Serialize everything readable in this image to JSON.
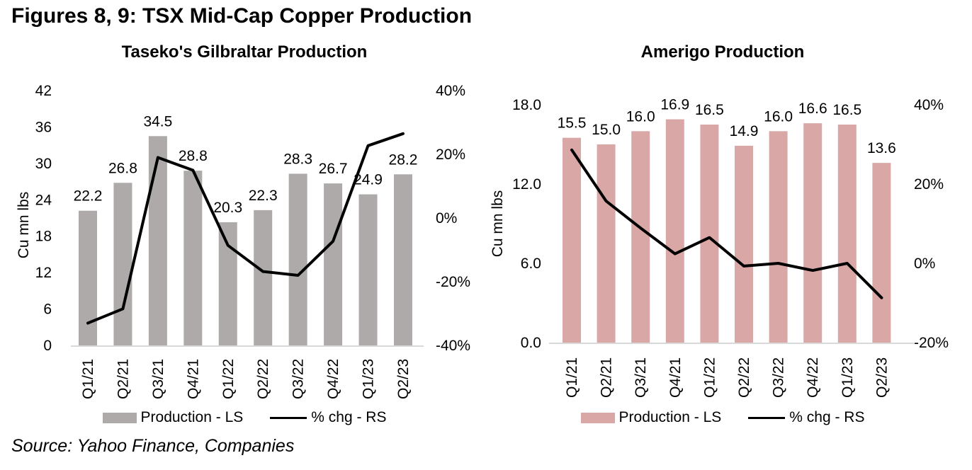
{
  "page": {
    "heading": "Figures 8, 9: TSX Mid-Cap Copper Production",
    "source": "Source: Yahoo Finance, Companies"
  },
  "colors": {
    "taseko_bar": "#ADAAA9",
    "amerigo_bar": "#D9A8A6",
    "trend_line": "#000000",
    "axis_line": "#D9D9D9",
    "text": "#000000"
  },
  "chart_data": [
    {
      "type": "bar",
      "title": "Taseko's Gilbraltar Production",
      "ylabel": "Cu mn lbs",
      "grid": false,
      "legend_position": "bottom",
      "categories": [
        "Q1/21",
        "Q2/21",
        "Q3/21",
        "Q4/21",
        "Q1/22",
        "Q2/22",
        "Q3/22",
        "Q4/22",
        "Q1/23",
        "Q2/23"
      ],
      "left_axis": {
        "min": 0,
        "max": 42,
        "ticks": [
          {
            "v": 42,
            "label": "42"
          },
          {
            "v": 36,
            "label": "36"
          },
          {
            "v": 30,
            "label": "30"
          },
          {
            "v": 24,
            "label": "24"
          },
          {
            "v": 18,
            "label": "18"
          },
          {
            "v": 12,
            "label": "12"
          },
          {
            "v": 6,
            "label": "6"
          },
          {
            "v": 0,
            "label": "0"
          }
        ]
      },
      "right_axis": {
        "min": -40,
        "max": 40,
        "ticks": [
          {
            "v": 40,
            "label": "40%"
          },
          {
            "v": 20,
            "label": "20%"
          },
          {
            "v": 0,
            "label": "0%"
          },
          {
            "v": -20,
            "label": "-20%"
          },
          {
            "v": -40,
            "label": "-40%"
          }
        ]
      },
      "series": [
        {
          "name": "Production - LS",
          "type": "bar",
          "axis": "left",
          "color": "#ADAAA9",
          "values": [
            22.2,
            26.8,
            34.5,
            28.8,
            20.3,
            22.3,
            28.3,
            26.7,
            24.9,
            28.2
          ],
          "labels": [
            "22.2",
            "26.8",
            "34.5",
            "28.8",
            "20.3",
            "22.3",
            "28.3",
            "26.7",
            "24.9",
            "28.2"
          ]
        },
        {
          "name": "% chg - RS",
          "type": "line",
          "axis": "right",
          "color": "#000000",
          "values": [
            -33.0,
            -28.5,
            19.0,
            15.0,
            -8.6,
            -16.8,
            -18.0,
            -7.3,
            22.7,
            26.5
          ]
        }
      ]
    },
    {
      "type": "bar",
      "title": "Amerigo Production",
      "ylabel": "Cu mn lbs",
      "grid": false,
      "legend_position": "bottom",
      "categories": [
        "Q1/21",
        "Q2/21",
        "Q3/21",
        "Q4/21",
        "Q1/22",
        "Q2/22",
        "Q3/22",
        "Q4/22",
        "Q1/23",
        "Q2/23"
      ],
      "left_axis": {
        "min": 0,
        "max": 18,
        "ticks": [
          {
            "v": 18,
            "label": "18.0"
          },
          {
            "v": 12,
            "label": "12.0"
          },
          {
            "v": 6,
            "label": "6.0"
          },
          {
            "v": 0,
            "label": "0.0"
          }
        ]
      },
      "right_axis": {
        "min": -20,
        "max": 40,
        "ticks": [
          {
            "v": 40,
            "label": "40%"
          },
          {
            "v": 20,
            "label": "20%"
          },
          {
            "v": 0,
            "label": "0%"
          },
          {
            "v": -20,
            "label": "-20%"
          }
        ]
      },
      "series": [
        {
          "name": "Production - LS",
          "type": "bar",
          "axis": "left",
          "color": "#D9A8A6",
          "values": [
            15.5,
            15.0,
            16.0,
            16.9,
            16.5,
            14.9,
            16.0,
            16.6,
            16.5,
            13.6
          ],
          "labels": [
            "15.5",
            "15.0",
            "16.0",
            "16.9",
            "16.5",
            "14.9",
            "16.0",
            "16.6",
            "16.5",
            "13.6"
          ]
        },
        {
          "name": "% chg - RS",
          "type": "line",
          "axis": "right",
          "color": "#000000",
          "values": [
            28.6,
            15.7,
            8.9,
            2.4,
            6.5,
            -0.7,
            0.0,
            -1.8,
            0.0,
            -8.7
          ]
        }
      ]
    }
  ]
}
